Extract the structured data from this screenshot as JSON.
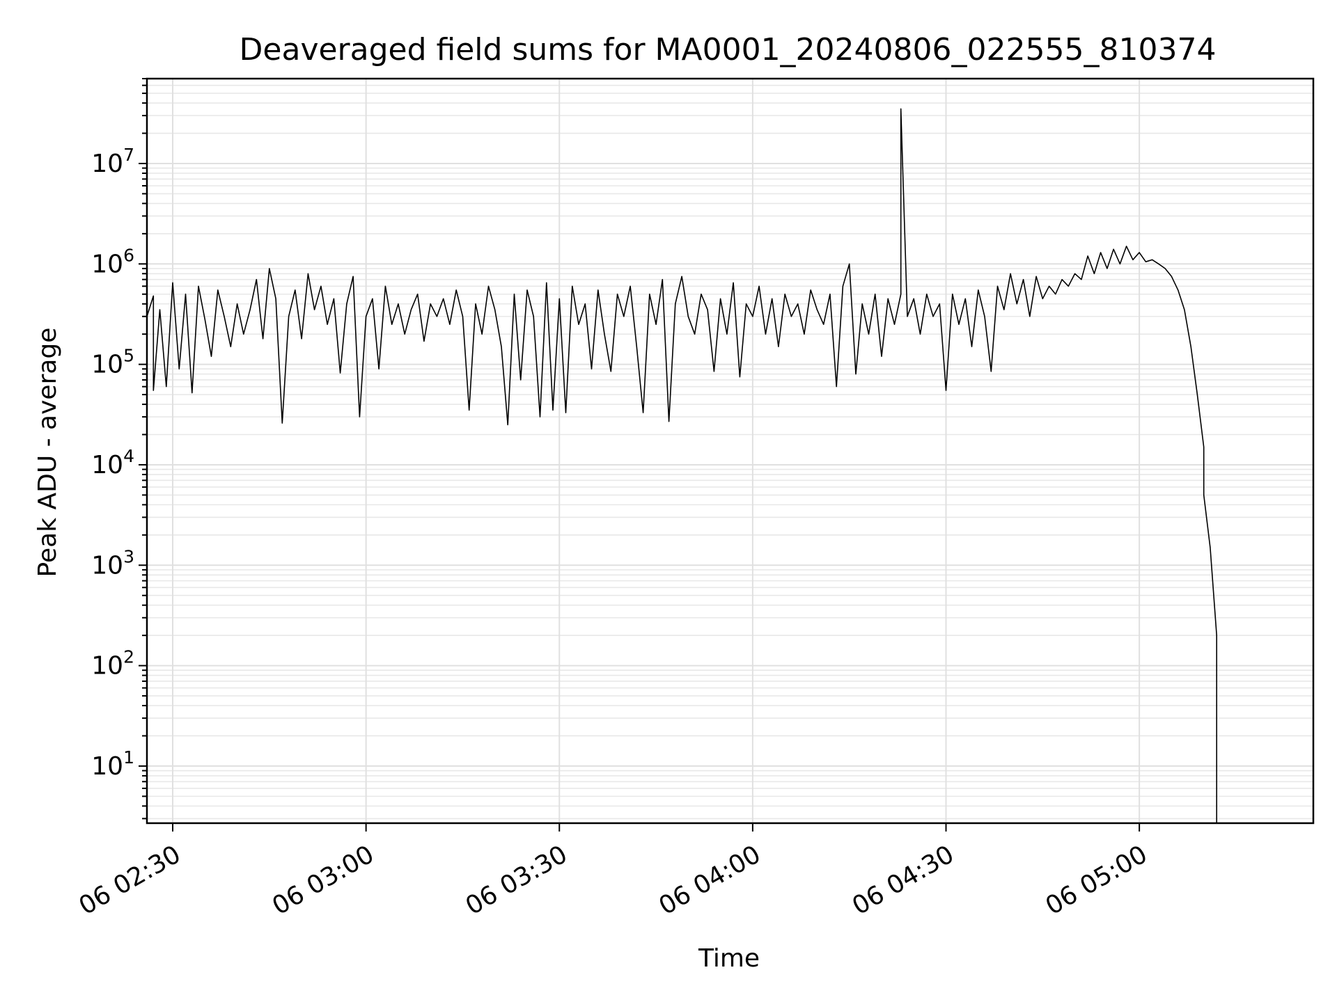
{
  "chart_data": {
    "type": "line",
    "title": "Deaveraged field sums for MA0001_20240806_022555_810374",
    "xlabel": "Time",
    "ylabel": "Peak ADU - average",
    "x_unit": "time of day (HH:MM), day 06",
    "xlim": [
      "02:26",
      "05:27"
    ],
    "ylim": [
      2.7,
      70000000
    ],
    "yscale": "log",
    "grid": "both",
    "legend": "none",
    "line_color": "#000000",
    "x_ticks": [
      {
        "value": "02:30",
        "label": "06 02:30"
      },
      {
        "value": "03:00",
        "label": "06 03:00"
      },
      {
        "value": "03:30",
        "label": "06 03:30"
      },
      {
        "value": "04:00",
        "label": "06 04:00"
      },
      {
        "value": "04:30",
        "label": "06 04:30"
      },
      {
        "value": "05:00",
        "label": "06 05:00"
      }
    ],
    "y_ticks": [
      {
        "value": 10,
        "base": "10",
        "exp": "1"
      },
      {
        "value": 100,
        "base": "10",
        "exp": "2"
      },
      {
        "value": 1000,
        "base": "10",
        "exp": "3"
      },
      {
        "value": 10000,
        "base": "10",
        "exp": "4"
      },
      {
        "value": 100000,
        "base": "10",
        "exp": "5"
      },
      {
        "value": 1000000,
        "base": "10",
        "exp": "6"
      },
      {
        "value": 10000000,
        "base": "10",
        "exp": "7"
      }
    ],
    "series": [
      {
        "points": [
          [
            "02:26",
            300000
          ],
          [
            "02:27",
            480000
          ],
          [
            "02:27",
            55000
          ],
          [
            "02:28",
            350000
          ],
          [
            "02:29",
            60000
          ],
          [
            "02:30",
            650000
          ],
          [
            "02:31",
            90000
          ],
          [
            "02:32",
            500000
          ],
          [
            "02:33",
            52000
          ],
          [
            "02:34",
            600000
          ],
          [
            "02:35",
            280000
          ],
          [
            "02:36",
            120000
          ],
          [
            "02:37",
            550000
          ],
          [
            "02:38",
            300000
          ],
          [
            "02:39",
            150000
          ],
          [
            "02:40",
            400000
          ],
          [
            "02:41",
            200000
          ],
          [
            "02:42",
            350000
          ],
          [
            "02:43",
            700000
          ],
          [
            "02:44",
            180000
          ],
          [
            "02:45",
            900000
          ],
          [
            "02:46",
            450000
          ],
          [
            "02:47",
            26000
          ],
          [
            "02:48",
            300000
          ],
          [
            "02:49",
            550000
          ],
          [
            "02:50",
            180000
          ],
          [
            "02:51",
            800000
          ],
          [
            "02:52",
            350000
          ],
          [
            "02:53",
            600000
          ],
          [
            "02:54",
            250000
          ],
          [
            "02:55",
            450000
          ],
          [
            "02:56",
            82000
          ],
          [
            "02:57",
            400000
          ],
          [
            "02:58",
            750000
          ],
          [
            "02:59",
            30000
          ],
          [
            "03:00",
            300000
          ],
          [
            "03:01",
            450000
          ],
          [
            "03:02",
            90000
          ],
          [
            "03:03",
            600000
          ],
          [
            "03:04",
            250000
          ],
          [
            "03:05",
            400000
          ],
          [
            "03:06",
            200000
          ],
          [
            "03:07",
            350000
          ],
          [
            "03:08",
            500000
          ],
          [
            "03:09",
            170000
          ],
          [
            "03:10",
            400000
          ],
          [
            "03:11",
            300000
          ],
          [
            "03:12",
            450000
          ],
          [
            "03:13",
            250000
          ],
          [
            "03:14",
            550000
          ],
          [
            "03:15",
            300000
          ],
          [
            "03:16",
            35000
          ],
          [
            "03:17",
            400000
          ],
          [
            "03:18",
            200000
          ],
          [
            "03:19",
            600000
          ],
          [
            "03:20",
            350000
          ],
          [
            "03:21",
            150000
          ],
          [
            "03:22",
            25000
          ],
          [
            "03:23",
            500000
          ],
          [
            "03:24",
            70000
          ],
          [
            "03:25",
            550000
          ],
          [
            "03:26",
            300000
          ],
          [
            "03:27",
            30000
          ],
          [
            "03:28",
            650000
          ],
          [
            "03:29",
            35000
          ],
          [
            "03:30",
            450000
          ],
          [
            "03:31",
            33000
          ],
          [
            "03:32",
            600000
          ],
          [
            "03:33",
            250000
          ],
          [
            "03:34",
            400000
          ],
          [
            "03:35",
            90000
          ],
          [
            "03:36",
            550000
          ],
          [
            "03:37",
            200000
          ],
          [
            "03:38",
            85000
          ],
          [
            "03:39",
            500000
          ],
          [
            "03:40",
            300000
          ],
          [
            "03:41",
            600000
          ],
          [
            "03:42",
            150000
          ],
          [
            "03:43",
            33000
          ],
          [
            "03:44",
            500000
          ],
          [
            "03:45",
            250000
          ],
          [
            "03:46",
            700000
          ],
          [
            "03:47",
            27000
          ],
          [
            "03:48",
            400000
          ],
          [
            "03:49",
            750000
          ],
          [
            "03:50",
            300000
          ],
          [
            "03:51",
            200000
          ],
          [
            "03:52",
            500000
          ],
          [
            "03:53",
            350000
          ],
          [
            "03:54",
            85000
          ],
          [
            "03:55",
            450000
          ],
          [
            "03:56",
            200000
          ],
          [
            "03:57",
            650000
          ],
          [
            "03:58",
            75000
          ],
          [
            "03:59",
            400000
          ],
          [
            "04:00",
            300000
          ],
          [
            "04:01",
            600000
          ],
          [
            "04:02",
            200000
          ],
          [
            "04:03",
            450000
          ],
          [
            "04:04",
            150000
          ],
          [
            "04:05",
            500000
          ],
          [
            "04:06",
            300000
          ],
          [
            "04:07",
            400000
          ],
          [
            "04:08",
            200000
          ],
          [
            "04:09",
            550000
          ],
          [
            "04:10",
            350000
          ],
          [
            "04:11",
            250000
          ],
          [
            "04:12",
            500000
          ],
          [
            "04:13",
            60000
          ],
          [
            "04:14",
            600000
          ],
          [
            "04:15",
            1000000
          ],
          [
            "04:16",
            80000
          ],
          [
            "04:17",
            400000
          ],
          [
            "04:18",
            200000
          ],
          [
            "04:19",
            500000
          ],
          [
            "04:20",
            120000
          ],
          [
            "04:21",
            450000
          ],
          [
            "04:22",
            250000
          ],
          [
            "04:23",
            500000
          ],
          [
            "04:23",
            35000000
          ],
          [
            "04:24",
            300000
          ],
          [
            "04:25",
            450000
          ],
          [
            "04:26",
            200000
          ],
          [
            "04:27",
            500000
          ],
          [
            "04:28",
            300000
          ],
          [
            "04:29",
            400000
          ],
          [
            "04:30",
            55000
          ],
          [
            "04:31",
            500000
          ],
          [
            "04:32",
            250000
          ],
          [
            "04:33",
            450000
          ],
          [
            "04:34",
            150000
          ],
          [
            "04:35",
            550000
          ],
          [
            "04:36",
            300000
          ],
          [
            "04:37",
            85000
          ],
          [
            "04:38",
            600000
          ],
          [
            "04:39",
            350000
          ],
          [
            "04:40",
            800000
          ],
          [
            "04:41",
            400000
          ],
          [
            "04:42",
            700000
          ],
          [
            "04:43",
            300000
          ],
          [
            "04:44",
            750000
          ],
          [
            "04:45",
            450000
          ],
          [
            "04:46",
            600000
          ],
          [
            "04:47",
            500000
          ],
          [
            "04:48",
            700000
          ],
          [
            "04:49",
            600000
          ],
          [
            "04:50",
            800000
          ],
          [
            "04:51",
            700000
          ],
          [
            "04:52",
            1200000
          ],
          [
            "04:53",
            800000
          ],
          [
            "04:54",
            1300000
          ],
          [
            "04:55",
            900000
          ],
          [
            "04:56",
            1400000
          ],
          [
            "04:57",
            1000000
          ],
          [
            "04:58",
            1500000
          ],
          [
            "04:59",
            1100000
          ],
          [
            "05:00",
            1300000
          ],
          [
            "05:01",
            1050000
          ],
          [
            "05:02",
            1100000
          ],
          [
            "05:03",
            1000000
          ],
          [
            "05:04",
            900000
          ],
          [
            "05:05",
            750000
          ],
          [
            "05:06",
            550000
          ],
          [
            "05:07",
            350000
          ],
          [
            "05:08",
            150000
          ],
          [
            "05:09",
            50000
          ],
          [
            "05:10",
            15000
          ],
          [
            "05:10",
            5000
          ],
          [
            "05:11",
            1500
          ],
          [
            "05:12",
            200
          ],
          [
            "05:12",
            2.7
          ]
        ]
      }
    ]
  }
}
